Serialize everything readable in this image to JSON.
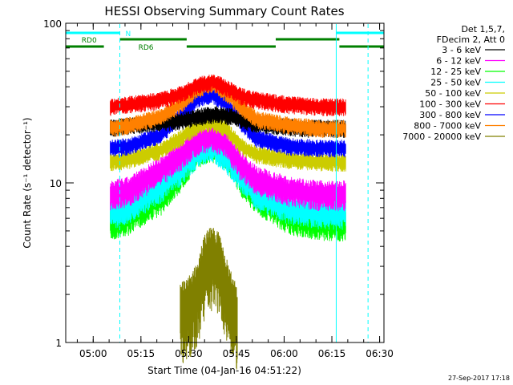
{
  "chart_data": {
    "type": "line",
    "title": "HESSI Observing Summary Count Rates",
    "xlabel": "Start Time (04-Jan-16 04:51:22)",
    "ylabel": "Count Rate (s⁻¹ detector⁻¹)",
    "yscale": "log",
    "ylim": [
      1,
      100
    ],
    "xlim": [
      "04:51:22",
      "06:31:22"
    ],
    "x_ticks": [
      "05:00",
      "05:15",
      "05:30",
      "05:45",
      "06:00",
      "06:15",
      "06:30"
    ],
    "y_ticks": [
      "1",
      "10",
      "100"
    ],
    "legend_header": [
      "Det 1,5,7,",
      "FDecim 2, Att 0"
    ],
    "legend_placement": "right",
    "series": [
      {
        "name": "3 - 6 keV",
        "color": "#000000",
        "x_minutes": [
          14,
          20,
          30,
          36,
          42,
          47,
          52,
          57,
          64,
          76,
          84,
          88
        ],
        "y": [
          22,
          23,
          24,
          24.5,
          26,
          27,
          26,
          24,
          23,
          22,
          22,
          22
        ]
      },
      {
        "name": "6 - 12 keV",
        "color": "#ff00ff",
        "x_minutes": [
          14,
          20,
          30,
          36,
          42,
          46,
          50,
          55,
          60,
          70,
          80,
          88
        ],
        "y": [
          8.5,
          9,
          12,
          15,
          19,
          20,
          18,
          13,
          10.5,
          9,
          8.5,
          8.5
        ]
      },
      {
        "name": "12 - 25 keV",
        "color": "#00ff00",
        "x_minutes": [
          14,
          20,
          30,
          36,
          42,
          46,
          50,
          55,
          60,
          70,
          80,
          88
        ],
        "y": [
          5.5,
          6,
          8,
          11,
          16,
          17,
          15.5,
          10.5,
          8,
          6,
          5.5,
          5.5
        ]
      },
      {
        "name": "25 - 50 keV",
        "color": "#00ffff",
        "x_minutes": [
          14,
          20,
          30,
          36,
          42,
          46,
          50,
          55,
          60,
          70,
          80,
          88
        ],
        "y": [
          6.5,
          7,
          9.5,
          12,
          16,
          17,
          15,
          11,
          8.5,
          7,
          6.5,
          6.5
        ]
      },
      {
        "name": "50 - 100 keV",
        "color": "#cccc00",
        "x_minutes": [
          14,
          20,
          30,
          36,
          42,
          46,
          50,
          55,
          60,
          70,
          80,
          88
        ],
        "y": [
          13.5,
          14,
          16,
          19,
          23,
          24,
          22,
          17,
          15,
          14,
          13.5,
          13.5
        ]
      },
      {
        "name": "100 - 300 keV",
        "color": "#ff0000",
        "x_minutes": [
          14,
          20,
          30,
          36,
          42,
          46,
          50,
          55,
          60,
          70,
          80,
          88
        ],
        "y": [
          30,
          31,
          33,
          36,
          41,
          43,
          40,
          35,
          33,
          31,
          30,
          30
        ]
      },
      {
        "name": "300 - 800 keV",
        "color": "#0000ff",
        "x_minutes": [
          14,
          20,
          30,
          36,
          42,
          46,
          50,
          55,
          60,
          70,
          80,
          88
        ],
        "y": [
          16.5,
          17,
          20,
          26,
          34,
          36,
          32,
          24,
          19,
          17,
          16.5,
          16.5
        ]
      },
      {
        "name": "800 - 7000 keV",
        "color": "#ff8000",
        "x_minutes": [
          14,
          20,
          30,
          36,
          42,
          46,
          50,
          55,
          60,
          70,
          80,
          88
        ],
        "y": [
          22,
          23,
          26,
          31,
          39,
          42,
          37,
          30,
          25,
          23,
          22,
          22
        ]
      },
      {
        "name": "7000 - 20000 keV",
        "color": "#808000",
        "x_minutes": [
          36,
          40,
          42,
          44,
          46,
          48,
          50,
          52,
          54
        ],
        "y": [
          1.5,
          1.8,
          2.3,
          3.2,
          3.5,
          3.2,
          2.3,
          1.8,
          1.4
        ]
      }
    ],
    "attenuator_flags": [
      {
        "label": "N",
        "color": "#00ffff",
        "segments": [
          [
            0,
            17
          ],
          [
            85,
            102
          ]
        ]
      },
      {
        "label": "RD0",
        "color": "#008000",
        "segments": [
          [
            17,
            38
          ],
          [
            66,
            86
          ]
        ]
      },
      {
        "label": "RD6",
        "color": "#008000",
        "segments": [
          [
            0,
            12
          ],
          [
            38,
            66
          ],
          [
            86,
            102
          ]
        ]
      }
    ],
    "markers": {
      "dashed_x_minutes": [
        17,
        95
      ],
      "solid_x_minutes": [
        85
      ]
    }
  },
  "footer": {
    "timestamp": "27-Sep-2017 17:18"
  }
}
